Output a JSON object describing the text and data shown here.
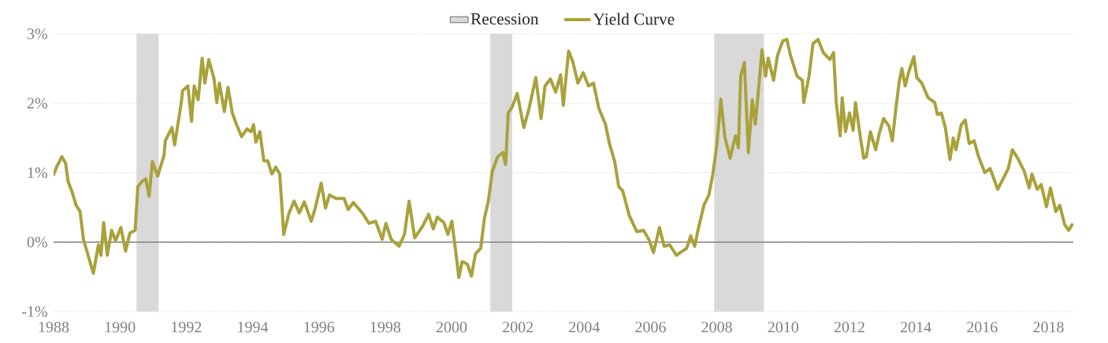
{
  "chart_data": {
    "type": "line",
    "xlim": [
      1988,
      2018.75
    ],
    "xticks": [
      1988,
      1990,
      1992,
      1994,
      1996,
      1998,
      2000,
      2002,
      2004,
      2006,
      2008,
      2010,
      2012,
      2014,
      2016,
      2018
    ],
    "ylim": [
      -1,
      3
    ],
    "yticks": [
      {
        "value": -1,
        "label": "-1%"
      },
      {
        "value": 0,
        "label": "0%"
      },
      {
        "value": 1,
        "label": "1%"
      },
      {
        "value": 2,
        "label": "2%"
      },
      {
        "value": 3,
        "label": "3%"
      }
    ],
    "grid": "y",
    "legend": "top",
    "line_style": "solid",
    "marker": "none",
    "ref_lines": [
      {
        "axis": "y",
        "value": 0,
        "color": "#808080"
      }
    ],
    "bands": [
      {
        "axis": "x",
        "from": 1990.5,
        "to": 1991.17,
        "label": "Recession",
        "color": "#d9d9d9"
      },
      {
        "axis": "x",
        "from": 2001.17,
        "to": 2001.83,
        "color": "#d9d9d9"
      },
      {
        "axis": "x",
        "from": 2007.92,
        "to": 2009.42,
        "color": "#d9d9d9"
      }
    ],
    "series": [
      {
        "name": "Yield Curve",
        "color": "#a9a23c",
        "x": [
          1988.0,
          1988.09,
          1988.25,
          1988.36,
          1988.44,
          1988.56,
          1988.68,
          1988.8,
          1988.9,
          1989.04,
          1989.2,
          1989.35,
          1989.43,
          1989.51,
          1989.62,
          1989.75,
          1989.87,
          1990.03,
          1990.17,
          1990.3,
          1990.46,
          1990.54,
          1990.66,
          1990.78,
          1990.88,
          1990.98,
          1991.14,
          1991.33,
          1991.37,
          1991.57,
          1991.65,
          1991.85,
          1991.89,
          1992.05,
          1992.16,
          1992.24,
          1992.36,
          1992.48,
          1992.56,
          1992.68,
          1992.84,
          1992.92,
          1993.0,
          1993.15,
          1993.26,
          1993.39,
          1993.51,
          1993.67,
          1993.83,
          1993.95,
          1994.03,
          1994.1,
          1994.22,
          1994.34,
          1994.46,
          1994.58,
          1994.7,
          1994.82,
          1994.94,
          1995.1,
          1995.25,
          1995.41,
          1995.56,
          1995.77,
          1995.89,
          1996.07,
          1996.2,
          1996.32,
          1996.52,
          1996.76,
          1996.88,
          1997.04,
          1997.31,
          1997.51,
          1997.71,
          1997.91,
          1998.02,
          1998.18,
          1998.42,
          1998.58,
          1998.72,
          1998.89,
          1999.13,
          1999.31,
          1999.45,
          1999.57,
          1999.77,
          1999.89,
          2000.01,
          2000.13,
          2000.22,
          2000.32,
          2000.48,
          2000.6,
          2000.72,
          2000.88,
          2000.99,
          2001.11,
          2001.23,
          2001.39,
          2001.55,
          2001.63,
          2001.71,
          2001.83,
          2001.98,
          2002.18,
          2002.34,
          2002.54,
          2002.7,
          2002.82,
          2002.98,
          2003.14,
          2003.29,
          2003.37,
          2003.53,
          2003.65,
          2003.81,
          2003.97,
          2004.13,
          2004.28,
          2004.44,
          2004.64,
          2004.76,
          2004.92,
          2005.04,
          2005.16,
          2005.36,
          2005.59,
          2005.79,
          2005.95,
          2006.09,
          2006.27,
          2006.41,
          2006.58,
          2006.78,
          2007.09,
          2007.21,
          2007.33,
          2007.45,
          2007.61,
          2007.76,
          2007.88,
          2008.0,
          2008.12,
          2008.24,
          2008.4,
          2008.56,
          2008.65,
          2008.72,
          2008.83,
          2008.95,
          2009.07,
          2009.16,
          2009.27,
          2009.36,
          2009.47,
          2009.55,
          2009.71,
          2009.83,
          2009.99,
          2010.11,
          2010.22,
          2010.42,
          2010.58,
          2010.62,
          2010.78,
          2010.9,
          2011.05,
          2011.21,
          2011.41,
          2011.52,
          2011.6,
          2011.72,
          2011.78,
          2011.88,
          2012.0,
          2012.11,
          2012.18,
          2012.35,
          2012.43,
          2012.51,
          2012.63,
          2012.79,
          2012.9,
          2013.03,
          2013.19,
          2013.29,
          2013.42,
          2013.5,
          2013.58,
          2013.68,
          2013.78,
          2013.94,
          2014.03,
          2014.18,
          2014.37,
          2014.57,
          2014.65,
          2014.77,
          2014.89,
          2015.03,
          2015.13,
          2015.21,
          2015.37,
          2015.49,
          2015.61,
          2015.76,
          2015.88,
          2016.08,
          2016.24,
          2016.47,
          2016.63,
          2016.79,
          2016.91,
          2017.07,
          2017.27,
          2017.42,
          2017.5,
          2017.66,
          2017.78,
          2017.94,
          2018.06,
          2018.22,
          2018.34,
          2018.49,
          2018.61,
          2018.71
        ],
        "values": [
          0.97,
          1.08,
          1.23,
          1.14,
          0.87,
          0.72,
          0.53,
          0.44,
          0.04,
          -0.19,
          -0.45,
          -0.04,
          -0.19,
          0.28,
          -0.19,
          0.17,
          0.02,
          0.21,
          -0.13,
          0.13,
          0.17,
          0.8,
          0.87,
          0.91,
          0.66,
          1.16,
          0.95,
          1.25,
          1.46,
          1.65,
          1.4,
          2.01,
          2.18,
          2.25,
          1.74,
          2.25,
          2.05,
          2.65,
          2.29,
          2.63,
          2.35,
          2.01,
          2.29,
          1.88,
          2.23,
          1.86,
          1.7,
          1.52,
          1.63,
          1.59,
          1.69,
          1.44,
          1.59,
          1.17,
          1.17,
          0.98,
          1.08,
          0.98,
          0.11,
          0.42,
          0.59,
          0.42,
          0.58,
          0.3,
          0.49,
          0.85,
          0.49,
          0.68,
          0.63,
          0.63,
          0.47,
          0.57,
          0.42,
          0.27,
          0.3,
          0.04,
          0.27,
          0.04,
          -0.06,
          0.11,
          0.59,
          0.06,
          0.23,
          0.4,
          0.19,
          0.36,
          0.28,
          0.11,
          0.3,
          -0.15,
          -0.51,
          -0.28,
          -0.32,
          -0.49,
          -0.17,
          -0.09,
          0.34,
          0.59,
          1.02,
          1.23,
          1.29,
          1.12,
          1.86,
          1.95,
          2.14,
          1.65,
          1.93,
          2.37,
          1.78,
          2.25,
          2.35,
          2.16,
          2.41,
          1.97,
          2.75,
          2.61,
          2.29,
          2.44,
          2.25,
          2.29,
          1.93,
          1.7,
          1.42,
          1.16,
          0.8,
          0.74,
          0.38,
          0.15,
          0.17,
          0.04,
          -0.15,
          0.21,
          -0.06,
          -0.04,
          -0.19,
          -0.09,
          0.09,
          -0.06,
          0.21,
          0.53,
          0.68,
          0.98,
          1.4,
          2.06,
          1.52,
          1.21,
          1.53,
          1.36,
          2.39,
          2.59,
          1.29,
          2.05,
          1.7,
          2.27,
          2.77,
          2.39,
          2.65,
          2.33,
          2.69,
          2.9,
          2.92,
          2.69,
          2.39,
          2.33,
          2.01,
          2.39,
          2.86,
          2.92,
          2.73,
          2.63,
          2.73,
          2.01,
          1.53,
          2.08,
          1.59,
          1.86,
          1.61,
          2.01,
          1.44,
          1.21,
          1.23,
          1.59,
          1.33,
          1.57,
          1.78,
          1.67,
          1.46,
          2.01,
          2.31,
          2.5,
          2.25,
          2.44,
          2.67,
          2.37,
          2.29,
          2.08,
          2.01,
          1.84,
          1.86,
          1.65,
          1.19,
          1.5,
          1.33,
          1.69,
          1.76,
          1.42,
          1.46,
          1.25,
          1.0,
          1.06,
          0.76,
          0.91,
          1.06,
          1.33,
          1.21,
          1.02,
          0.78,
          0.98,
          0.76,
          0.83,
          0.51,
          0.78,
          0.44,
          0.53,
          0.25,
          0.17,
          0.25
        ]
      }
    ]
  }
}
